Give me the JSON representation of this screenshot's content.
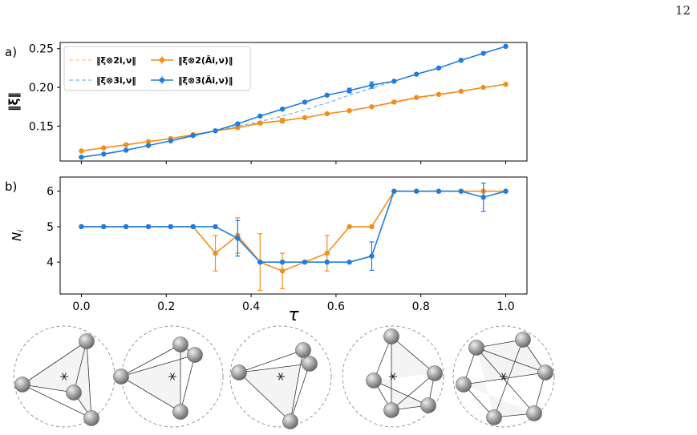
{
  "page_number": "12",
  "colors": {
    "orange": "#f28e1c",
    "blue": "#1f7de0",
    "orange_light": "#f7c48d",
    "blue_light": "#7db5ee",
    "axis": "#000000"
  },
  "chart_data": [
    {
      "panel_label": "a)",
      "type": "line",
      "ylabel": "‖ξ‖",
      "xlim": [
        -0.05,
        1.05
      ],
      "ylim": [
        0.105,
        0.258
      ],
      "yticks": [
        "0.15",
        "0.20",
        "0.25"
      ],
      "ytick_values": [
        0.15,
        0.2,
        0.25
      ],
      "x": [
        0.0,
        0.0526,
        0.1053,
        0.1579,
        0.2105,
        0.2632,
        0.3158,
        0.3684,
        0.4211,
        0.4737,
        0.5263,
        0.5789,
        0.6316,
        0.6842,
        0.7368,
        0.7895,
        0.8421,
        0.8947,
        0.9474,
        1.0
      ],
      "legend": {
        "placement": "top-left",
        "entries": [
          "‖ξ⊗2i,ν‖",
          "‖ξ⊗3i,ν‖",
          "‖ξ⊗2(Ãi,ν)‖",
          "‖ξ⊗3(Ãi,ν)‖"
        ]
      },
      "series": [
        {
          "name": "‖ξ⊗2i,ν‖",
          "style": "dashed",
          "color_key": "orange_light",
          "values": [
            0.118,
            0.122,
            0.126,
            0.13,
            0.134,
            0.139,
            0.144,
            0.148,
            0.153,
            0.157,
            0.161,
            0.166,
            0.17,
            0.175,
            0.18,
            0.186,
            0.19,
            0.195,
            0.199,
            0.204
          ]
        },
        {
          "name": "‖ξ⊗3i,ν‖",
          "style": "dashed",
          "color_key": "blue_light",
          "values": [
            0.11,
            0.114,
            0.119,
            0.125,
            0.131,
            0.137,
            0.144,
            0.15,
            0.156,
            0.163,
            0.171,
            0.18,
            0.19,
            0.199,
            0.208,
            0.217,
            0.225,
            0.235,
            0.244,
            0.253
          ]
        },
        {
          "name": "‖ξ⊗2(Ãi,ν)‖",
          "style": "solid-marker",
          "color_key": "orange",
          "values": [
            0.118,
            0.122,
            0.126,
            0.13,
            0.134,
            0.139,
            0.144,
            0.148,
            0.154,
            0.157,
            0.161,
            0.166,
            0.17,
            0.175,
            0.181,
            0.187,
            0.191,
            0.195,
            0.2,
            0.204
          ],
          "errors": [
            0,
            0,
            0,
            0,
            0,
            0,
            0,
            0,
            0.002,
            0.003,
            0,
            0,
            0,
            0,
            0.002,
            0,
            0,
            0,
            0,
            0
          ]
        },
        {
          "name": "‖ξ⊗3(Ãi,ν)‖",
          "style": "solid-marker",
          "color_key": "blue",
          "values": [
            0.11,
            0.114,
            0.119,
            0.125,
            0.131,
            0.138,
            0.144,
            0.153,
            0.163,
            0.172,
            0.181,
            0.19,
            0.196,
            0.203,
            0.208,
            0.217,
            0.225,
            0.235,
            0.244,
            0.253
          ],
          "errors": [
            0,
            0,
            0,
            0,
            0,
            0,
            0,
            0,
            0,
            0,
            0,
            0,
            0.003,
            0.004,
            0,
            0,
            0,
            0,
            0,
            0
          ]
        }
      ]
    },
    {
      "panel_label": "b)",
      "type": "line",
      "ylabel": "Ni",
      "xlabel": "τ",
      "xlim": [
        -0.05,
        1.05
      ],
      "ylim": [
        3.1,
        6.4
      ],
      "yticks": [
        "4",
        "5",
        "6"
      ],
      "ytick_values": [
        4,
        5,
        6
      ],
      "xticks": [
        "0.0",
        "0.2",
        "0.4",
        "0.6",
        "0.8",
        "1.0"
      ],
      "xtick_values": [
        0.0,
        0.2,
        0.4,
        0.6,
        0.8,
        1.0
      ],
      "x": [
        0.0,
        0.0526,
        0.1053,
        0.1579,
        0.2105,
        0.2632,
        0.3158,
        0.3684,
        0.4211,
        0.4737,
        0.5263,
        0.5789,
        0.6316,
        0.6842,
        0.7368,
        0.7895,
        0.8421,
        0.8947,
        0.9474,
        1.0
      ],
      "series": [
        {
          "color_key": "orange",
          "values": [
            5,
            5,
            5,
            5,
            5,
            5,
            4.25,
            4.75,
            4.0,
            3.75,
            4.0,
            4.25,
            5.0,
            5.0,
            6,
            6,
            6,
            6,
            6,
            6
          ],
          "errors": [
            0,
            0,
            0,
            0,
            0,
            0,
            0.5,
            0.5,
            0.8,
            0.5,
            0,
            0.5,
            0,
            0,
            0,
            0,
            0,
            0,
            0,
            0
          ]
        },
        {
          "color_key": "blue",
          "values": [
            5,
            5,
            5,
            5,
            5,
            5,
            5,
            4.67,
            4.0,
            4.0,
            4.0,
            4.0,
            4.0,
            4.17,
            6,
            6,
            6,
            6,
            5.83,
            6
          ],
          "errors": [
            0,
            0,
            0,
            0,
            0,
            0,
            0,
            0.5,
            0,
            0,
            0,
            0,
            0,
            0.4,
            0,
            0,
            0,
            0,
            0.4,
            0
          ]
        }
      ]
    }
  ],
  "clusters": [
    {
      "name": "cluster-4",
      "spheres": 4
    },
    {
      "name": "cluster-4b",
      "spheres": 4
    },
    {
      "name": "cluster-4c",
      "spheres": 4
    },
    {
      "name": "cluster-5",
      "spheres": 5
    },
    {
      "name": "cluster-6",
      "spheres": 6
    }
  ]
}
